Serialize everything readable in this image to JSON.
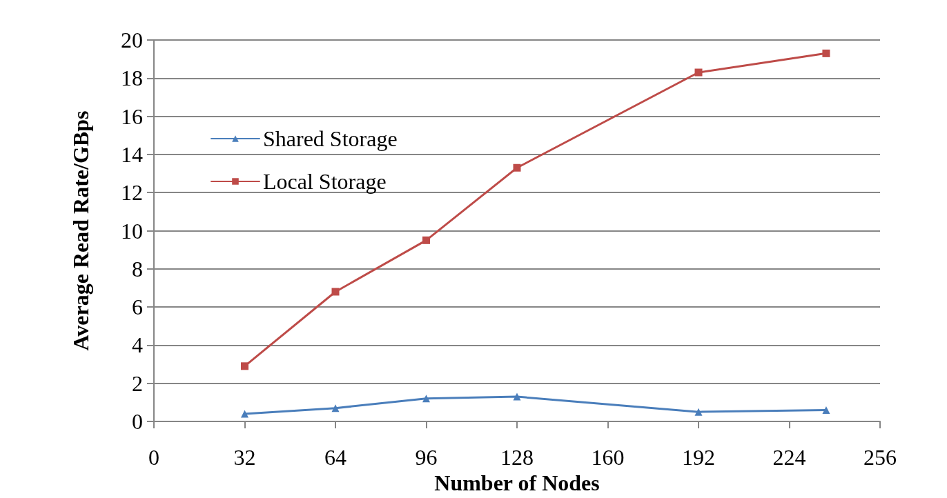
{
  "chart_data": {
    "type": "line",
    "xlabel": "Number of Nodes",
    "ylabel": "Average Read Rate/GBps",
    "xlim": [
      0,
      256
    ],
    "xticks": [
      0,
      32,
      64,
      96,
      128,
      160,
      192,
      224,
      256
    ],
    "ylim": [
      0,
      20
    ],
    "yticks": [
      0,
      2,
      4,
      6,
      8,
      10,
      12,
      14,
      16,
      18,
      20
    ],
    "grid": "y",
    "legend": "top left",
    "series": [
      {
        "name": "Shared Storage",
        "color": "#4a7ebb",
        "marker": "triangle",
        "x": [
          32,
          64,
          96,
          128,
          192,
          237
        ],
        "values": [
          0.4,
          0.7,
          1.2,
          1.3,
          0.5,
          0.6
        ]
      },
      {
        "name": "Local Storage",
        "color": "#be4b48",
        "marker": "square",
        "x": [
          32,
          64,
          96,
          128,
          192,
          237
        ],
        "values": [
          2.9,
          6.8,
          9.5,
          13.3,
          18.3,
          19.3
        ]
      }
    ]
  }
}
